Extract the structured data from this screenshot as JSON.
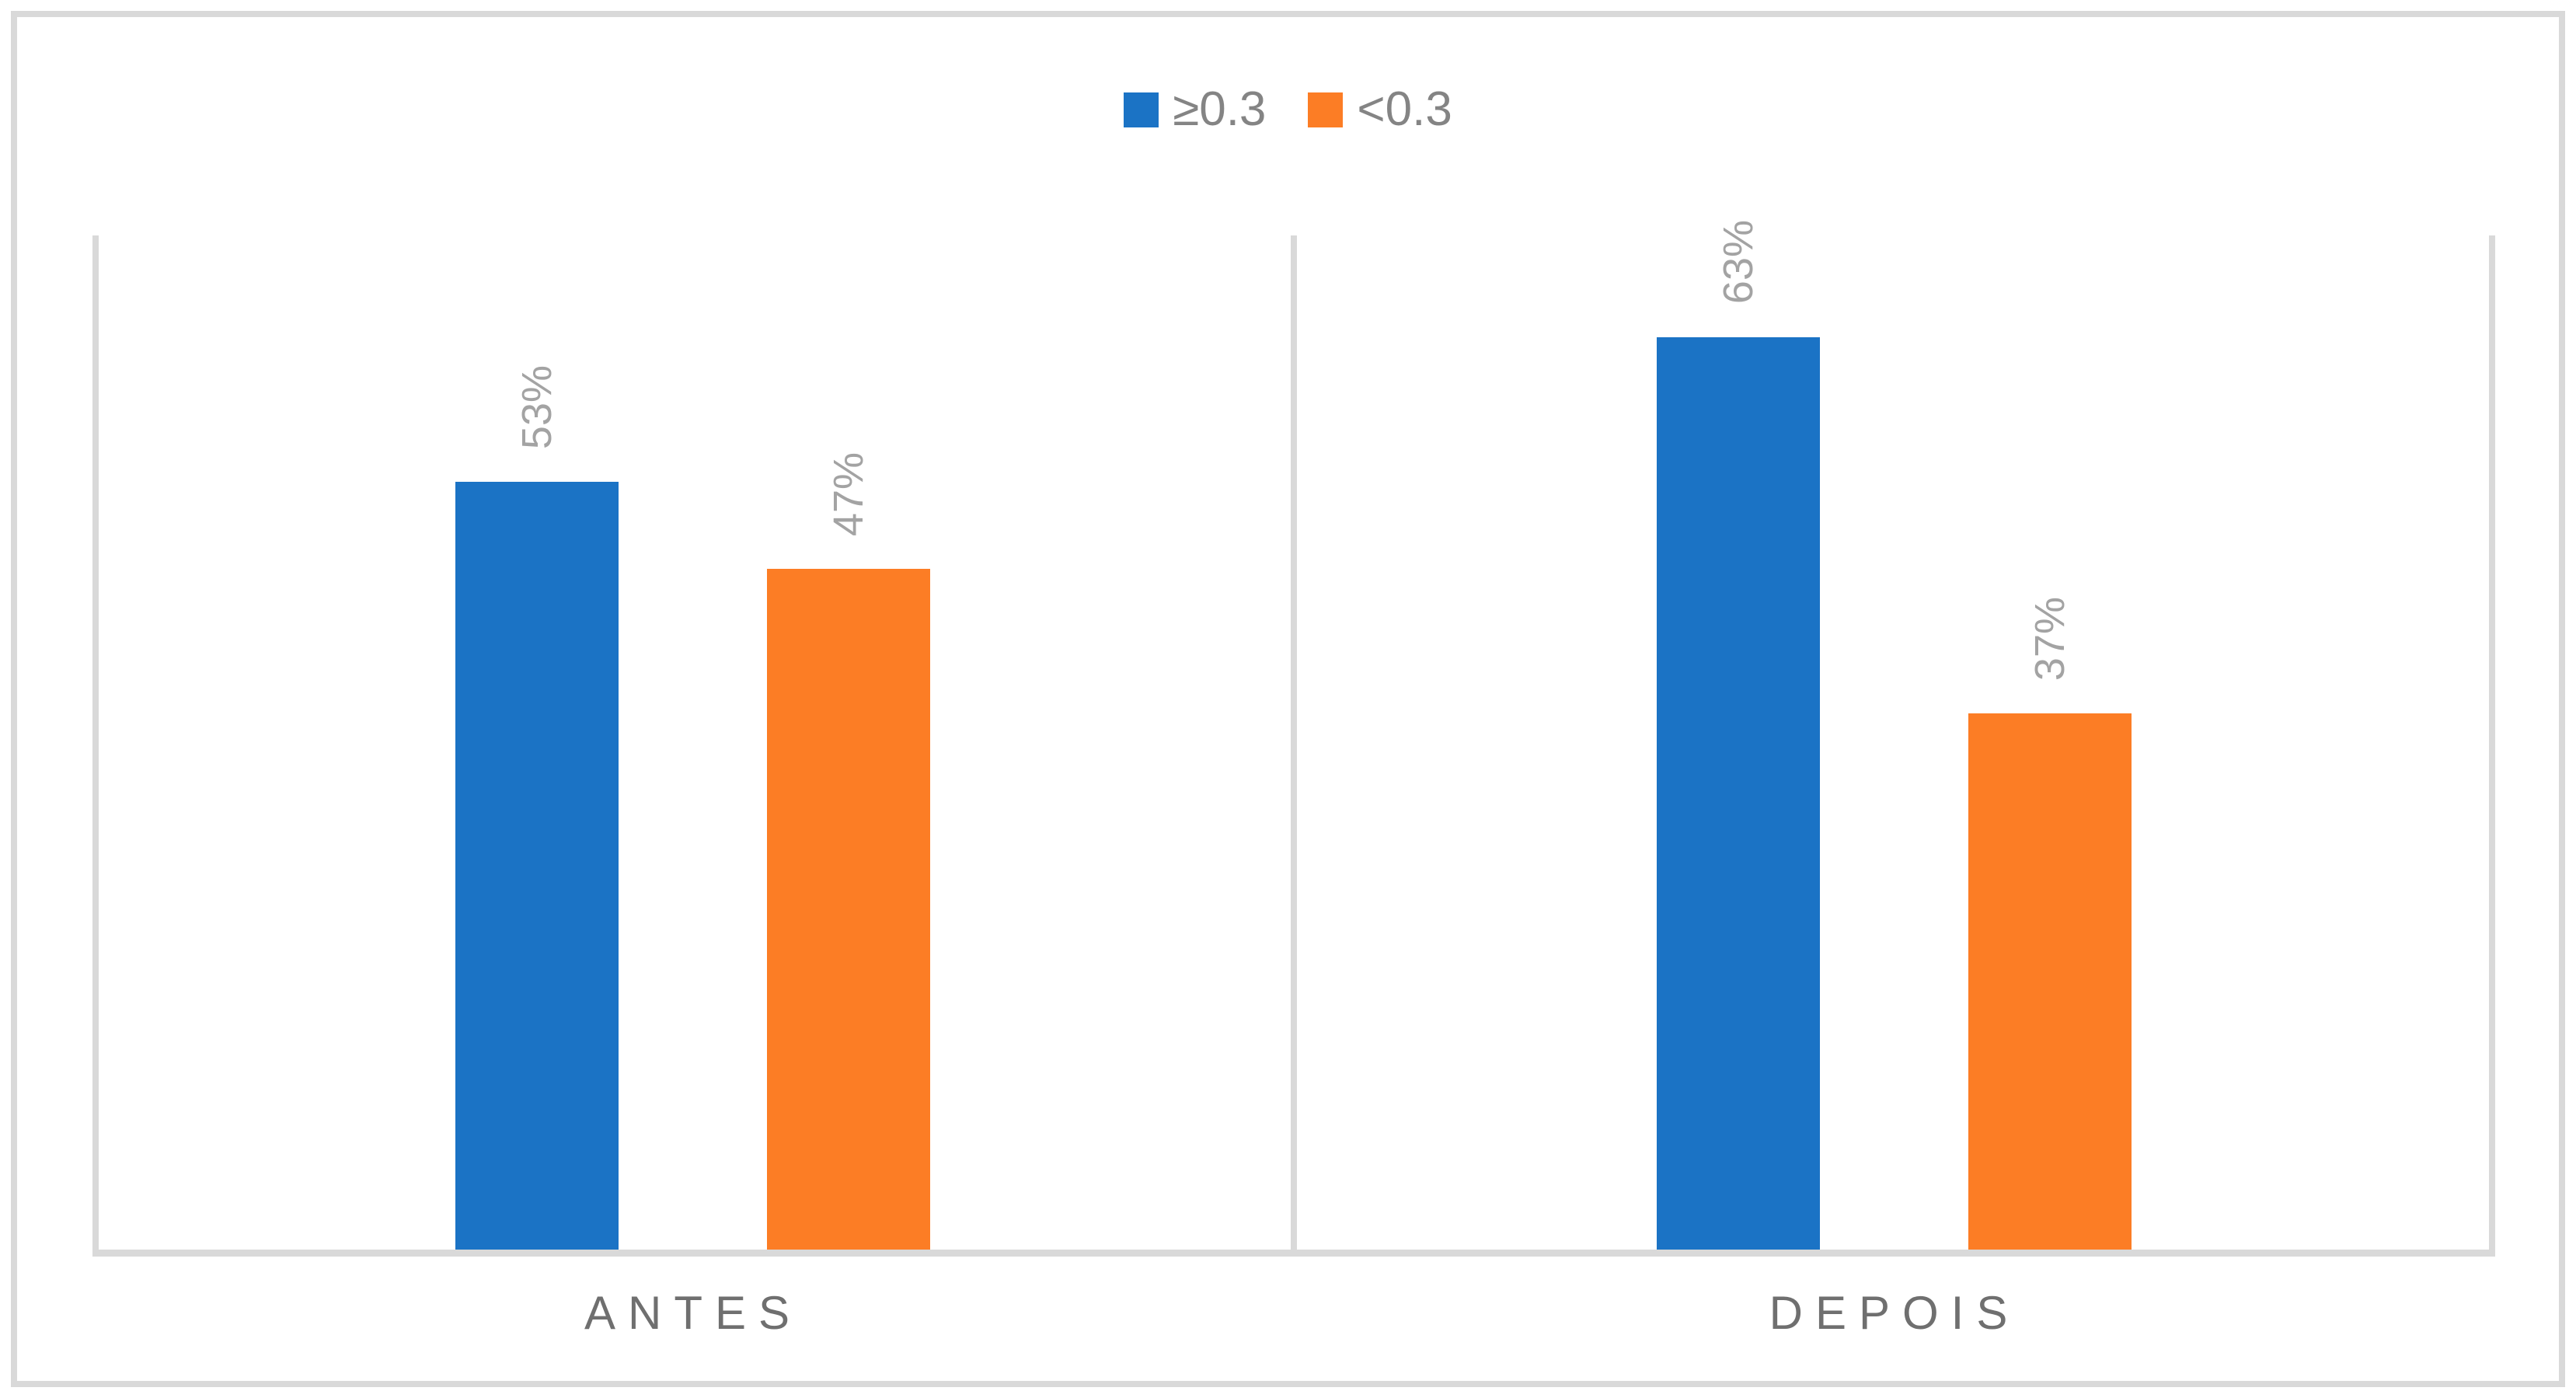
{
  "chart_data": {
    "type": "bar",
    "title": "",
    "categories": [
      "ANTES",
      "DEPOIS"
    ],
    "series": [
      {
        "name": "≥0.3",
        "color": "#1B73C5",
        "values": [
          53,
          63
        ],
        "labels": [
          "53%",
          "63%"
        ]
      },
      {
        "name": "<0.3",
        "color": "#FC7D25",
        "values": [
          47,
          37
        ],
        "labels": [
          "47%",
          "37%"
        ]
      }
    ],
    "xlabel": "",
    "ylabel": "",
    "ylim": [
      0,
      70
    ],
    "value_axis_visible": false,
    "grid": "vertical-category-boundaries",
    "gridline_color": "#D9D9D9",
    "legend_position": "top-center",
    "data_label_rotation": -90,
    "data_label_color": "#A3A3A3",
    "category_label_color": "#6F6F6F",
    "legend_text_color": "#848484",
    "frame_border_color": "#D9D9D9"
  },
  "legend": {
    "items": [
      {
        "label": "≥0.3",
        "swatch_color": "#1B73C5"
      },
      {
        "label": "<0.3",
        "swatch_color": "#FC7D25"
      }
    ]
  }
}
